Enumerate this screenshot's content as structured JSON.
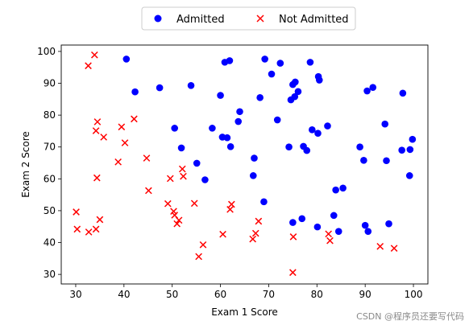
{
  "chart_data": {
    "type": "scatter",
    "xlabel": "Exam 1 Score",
    "ylabel": "Exam 2 Score",
    "xlim": [
      27,
      103
    ],
    "ylim": [
      27,
      102
    ],
    "xticks": [
      30,
      40,
      50,
      60,
      70,
      80,
      90,
      100
    ],
    "yticks": [
      30,
      40,
      50,
      60,
      70,
      80,
      90,
      100
    ],
    "grid": false,
    "legend_position": "top-center-outside",
    "series": [
      {
        "name": "Admitted",
        "marker": "circle",
        "color": "#0000ff",
        "points": [
          [
            40.5,
            97.6
          ],
          [
            42.3,
            87.3
          ],
          [
            47.4,
            88.6
          ],
          [
            50.5,
            75.9
          ],
          [
            51.9,
            69.7
          ],
          [
            53.9,
            89.3
          ],
          [
            55.1,
            64.9
          ],
          [
            56.8,
            59.7
          ],
          [
            58.3,
            75.9
          ],
          [
            60.0,
            86.2
          ],
          [
            60.4,
            73.1
          ],
          [
            60.9,
            96.6
          ],
          [
            61.4,
            72.9
          ],
          [
            61.9,
            97.1
          ],
          [
            62.1,
            70.1
          ],
          [
            63.7,
            78.0
          ],
          [
            64.0,
            81.1
          ],
          [
            66.8,
            61.0
          ],
          [
            67.0,
            66.5
          ],
          [
            68.2,
            85.5
          ],
          [
            69.0,
            52.8
          ],
          [
            69.2,
            97.6
          ],
          [
            70.6,
            92.9
          ],
          [
            71.8,
            78.5
          ],
          [
            72.4,
            96.3
          ],
          [
            74.2,
            70.0
          ],
          [
            74.6,
            84.8
          ],
          [
            75.0,
            89.6
          ],
          [
            75.0,
            46.3
          ],
          [
            75.4,
            85.8
          ],
          [
            75.5,
            90.4
          ],
          [
            76.1,
            87.4
          ],
          [
            76.9,
            47.5
          ],
          [
            77.2,
            70.2
          ],
          [
            77.9,
            68.9
          ],
          [
            78.6,
            96.6
          ],
          [
            79.0,
            75.4
          ],
          [
            80.1,
            44.9
          ],
          [
            80.2,
            74.3
          ],
          [
            80.3,
            92.1
          ],
          [
            80.5,
            91.0
          ],
          [
            82.2,
            76.6
          ],
          [
            83.5,
            48.5
          ],
          [
            83.9,
            56.5
          ],
          [
            84.5,
            43.5
          ],
          [
            85.4,
            57.1
          ],
          [
            88.9,
            70.0
          ],
          [
            89.7,
            65.8
          ],
          [
            90.0,
            45.4
          ],
          [
            90.4,
            87.6
          ],
          [
            90.6,
            43.5
          ],
          [
            91.6,
            88.7
          ],
          [
            94.1,
            77.2
          ],
          [
            94.4,
            65.7
          ],
          [
            94.9,
            45.9
          ],
          [
            97.6,
            69.0
          ],
          [
            97.8,
            86.9
          ],
          [
            99.2,
            61.0
          ],
          [
            99.3,
            69.2
          ],
          [
            99.8,
            72.4
          ]
        ]
      },
      {
        "name": "Not Admitted",
        "marker": "x",
        "color": "#ff0000",
        "points": [
          [
            30.1,
            49.6
          ],
          [
            30.3,
            44.2
          ],
          [
            32.6,
            95.5
          ],
          [
            32.7,
            43.3
          ],
          [
            33.9,
            98.9
          ],
          [
            34.2,
            44.2
          ],
          [
            34.2,
            75.1
          ],
          [
            34.4,
            60.3
          ],
          [
            34.5,
            77.9
          ],
          [
            35.0,
            47.2
          ],
          [
            35.8,
            73.1
          ],
          [
            38.8,
            65.3
          ],
          [
            39.5,
            76.3
          ],
          [
            40.2,
            71.3
          ],
          [
            42.1,
            78.8
          ],
          [
            44.7,
            66.5
          ],
          [
            45.1,
            56.3
          ],
          [
            49.1,
            52.2
          ],
          [
            49.6,
            60.1
          ],
          [
            50.3,
            49.8
          ],
          [
            50.5,
            48.6
          ],
          [
            51.0,
            45.9
          ],
          [
            51.4,
            47.0
          ],
          [
            52.1,
            63.1
          ],
          [
            52.3,
            60.8
          ],
          [
            54.6,
            52.3
          ],
          [
            55.5,
            35.6
          ],
          [
            56.4,
            39.3
          ],
          [
            60.5,
            42.6
          ],
          [
            62.0,
            50.4
          ],
          [
            62.3,
            52.0
          ],
          [
            66.7,
            41.1
          ],
          [
            67.3,
            42.9
          ],
          [
            67.9,
            46.7
          ],
          [
            75.0,
            30.6
          ],
          [
            75.1,
            41.8
          ],
          [
            82.4,
            42.7
          ],
          [
            82.7,
            40.6
          ],
          [
            93.1,
            38.8
          ],
          [
            96.0,
            38.2
          ]
        ]
      }
    ]
  },
  "watermark": "CSDN @程序员还要写代码"
}
